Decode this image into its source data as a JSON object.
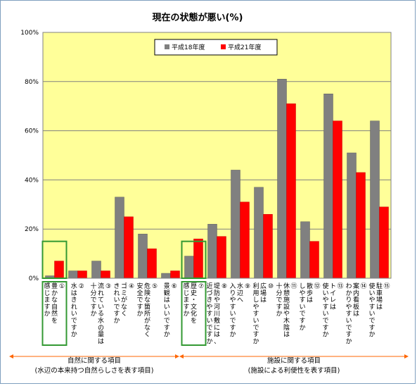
{
  "chart_data": {
    "type": "bar",
    "title": "現在の状態が悪い(%)",
    "ylim": [
      0,
      100
    ],
    "yticks": [
      0,
      20,
      40,
      60,
      80,
      100
    ],
    "ytick_labels": [
      "0%",
      "20%",
      "40%",
      "60%",
      "80%",
      "100%"
    ],
    "grid": true,
    "legend_position": "top-center",
    "categories": [
      "①豊かな自然を感じますか",
      "②水はきれいですか",
      "③流れている水の量は十分ですか",
      "④ゴミがなくきれいですか",
      "⑤危険な箇所がなく安全ですか",
      "⑥景観はいいですか",
      "⑦歴史・文化を感じますか",
      "⑧堤防や河川敷には、近づきやすいですか",
      "⑨水辺へ入りやすいですか",
      "⑩広場は利用しやすいですか",
      "⑪休憩施設や木陰は十分ですか",
      "⑫散歩はしやすいですか",
      "⑬トイレは使いやすいですか",
      "⑭案内看板はわかりやすいですか",
      "⑮駐車場は使いやすいですか"
    ],
    "category_lines": [
      [
        "①",
        "豊かな自然を",
        "感じますか"
      ],
      [
        "②",
        "水はきれいですか"
      ],
      [
        "③",
        "流れている水の量は",
        "十分ですか"
      ],
      [
        "④",
        "ゴミがなく",
        "きれいですか"
      ],
      [
        "⑤",
        "危険な箇所がなく",
        "安全ですか"
      ],
      [
        "⑥",
        "景観はいいですか"
      ],
      [
        "⑦",
        "歴史・文化を",
        "感じますか"
      ],
      [
        "⑧",
        "堤防や河川敷には、",
        "近づきやすいですか"
      ],
      [
        "⑨",
        "水辺へ",
        "入りやすいですか"
      ],
      [
        "⑩",
        "広場は",
        "利用しやすいですか"
      ],
      [
        "⑪",
        "休憩施設や木陰は",
        "十分ですか"
      ],
      [
        "⑫",
        "散歩は",
        "しやすいですか"
      ],
      [
        "⑬",
        "トイレは",
        "使いやすいですか"
      ],
      [
        "⑭",
        "案内看板は",
        "わかりやすいですか"
      ],
      [
        "⑮",
        "駐車場は",
        "使いやすいですか"
      ]
    ],
    "series": [
      {
        "name": "平成18年度",
        "color": "#808080",
        "values": [
          1,
          3,
          7,
          33,
          18,
          2,
          9,
          22,
          44,
          37,
          81,
          23,
          75,
          51,
          64
        ]
      },
      {
        "name": "平成21年度",
        "color": "#ff0000",
        "values": [
          7,
          3,
          3,
          25,
          12,
          3,
          16,
          17,
          31,
          26,
          71,
          15,
          64,
          43,
          29
        ]
      }
    ],
    "highlighted_categories": [
      0,
      6
    ],
    "highlight_color": "#339933",
    "groups": [
      {
        "label": "自然に関する項目",
        "sublabel": "(水辺の本来持つ自然らしさを表す項目)",
        "start": 0,
        "end": 5
      },
      {
        "label": "施設に関する項目",
        "sublabel": "(施設による利便性を表す項目)",
        "start": 6,
        "end": 14
      }
    ],
    "plot_background": "#ffff99",
    "group_arrow_color": "#ff6600"
  }
}
